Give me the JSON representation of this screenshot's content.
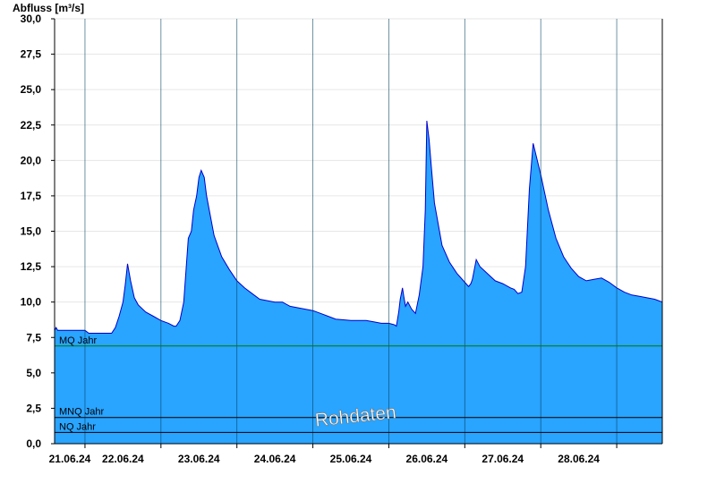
{
  "chart_data": {
    "type": "area",
    "ylabel": "Abfluss [m³/s]",
    "ylim": [
      0,
      30
    ],
    "y_ticks": [
      "0,0",
      "2,5",
      "5,0",
      "7,5",
      "10,0",
      "12,5",
      "15,0",
      "17,5",
      "20,0",
      "22,5",
      "25,0",
      "27,5",
      "30,0"
    ],
    "x_categories": [
      "21.06.24",
      "22.06.24",
      "23.06.24",
      "24.06.24",
      "25.06.24",
      "26.06.24",
      "27.06.24",
      "28.06.24"
    ],
    "x_start_day": 20.6,
    "x_end_day": 28.6,
    "grid": true,
    "series": [
      {
        "color": "#29a4ff",
        "line_color": "#0000cc",
        "x": [
          20.6,
          20.62,
          20.64,
          20.7,
          20.8,
          20.9,
          21.0,
          21.05,
          21.1,
          21.2,
          21.3,
          21.35,
          21.4,
          21.45,
          21.5,
          21.53,
          21.56,
          21.6,
          21.65,
          21.7,
          21.8,
          21.9,
          22.0,
          22.1,
          22.17,
          22.2,
          22.25,
          22.3,
          22.36,
          22.4,
          22.43,
          22.47,
          22.5,
          22.53,
          22.57,
          22.6,
          22.7,
          22.8,
          22.9,
          23.0,
          23.1,
          23.2,
          23.3,
          23.5,
          23.6,
          23.7,
          23.8,
          24.0,
          24.1,
          24.2,
          24.3,
          24.5,
          24.7,
          24.8,
          24.9,
          25.0,
          25.07,
          25.1,
          25.13,
          25.15,
          25.18,
          25.2,
          25.22,
          25.25,
          25.3,
          25.35,
          25.4,
          25.45,
          25.48,
          25.5,
          25.53,
          25.56,
          25.6,
          25.7,
          25.8,
          25.9,
          26.0,
          26.05,
          26.08,
          26.1,
          26.15,
          26.2,
          26.3,
          26.4,
          26.5,
          26.6,
          26.65,
          26.7,
          26.75,
          26.8,
          26.85,
          26.9,
          27.0,
          27.1,
          27.2,
          27.3,
          27.4,
          27.5,
          27.6,
          27.7,
          27.8,
          27.9,
          28.0,
          28.1,
          28.2,
          28.3,
          28.4,
          28.5,
          28.55,
          28.6
        ],
        "values": [
          8.0,
          8.2,
          8.0,
          8.0,
          8.0,
          8.0,
          8.0,
          7.8,
          7.8,
          7.8,
          7.8,
          7.8,
          8.2,
          9.0,
          10.0,
          11.2,
          12.7,
          11.5,
          10.3,
          9.8,
          9.3,
          9.0,
          8.7,
          8.5,
          8.3,
          8.3,
          8.7,
          10.0,
          14.5,
          15.0,
          16.5,
          17.5,
          18.8,
          19.3,
          18.8,
          17.5,
          14.7,
          13.2,
          12.3,
          11.5,
          11.0,
          10.6,
          10.2,
          10.0,
          10.0,
          9.7,
          9.6,
          9.4,
          9.2,
          9.0,
          8.8,
          8.7,
          8.7,
          8.6,
          8.5,
          8.5,
          8.4,
          8.3,
          9.3,
          10.2,
          11.0,
          10.3,
          9.7,
          10.0,
          9.5,
          9.2,
          10.5,
          12.5,
          16.5,
          22.8,
          21.5,
          19.5,
          17.0,
          14.0,
          12.8,
          12.0,
          11.4,
          11.1,
          11.3,
          11.6,
          13.0,
          12.5,
          12.0,
          11.5,
          11.3,
          11.0,
          10.9,
          10.6,
          10.7,
          12.5,
          18.0,
          21.2,
          19.0,
          16.5,
          14.5,
          13.2,
          12.4,
          11.8,
          11.5,
          11.6,
          11.7,
          11.4,
          11.0,
          10.7,
          10.5,
          10.4,
          10.3,
          10.2,
          10.1,
          10.0
        ]
      }
    ],
    "reference_lines": [
      {
        "label": "MQ Jahr",
        "value": 6.9,
        "color": "#007a00"
      },
      {
        "label": "MNQ Jahr",
        "value": 1.85,
        "color": "#000000"
      },
      {
        "label": "NQ Jahr",
        "value": 0.8,
        "color": "#000000"
      }
    ],
    "watermark": "Rohdaten"
  }
}
